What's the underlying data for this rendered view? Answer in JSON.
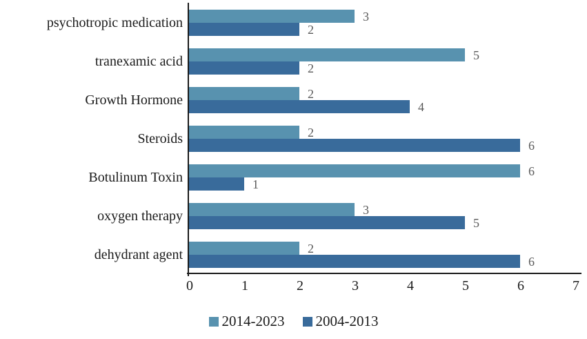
{
  "chart_data": {
    "type": "bar",
    "orientation": "horizontal",
    "title": "",
    "xlabel": "",
    "ylabel": "",
    "categories": [
      "psychotropic medication",
      "tranexamic acid",
      "Growth Hormone",
      "Steroids",
      "Botulinum Toxin",
      "oxygen therapy",
      "dehydrant agent"
    ],
    "series": [
      {
        "name": "2014-2023",
        "color": "#5892AF",
        "values": [
          3,
          5,
          2,
          2,
          6,
          3,
          2
        ]
      },
      {
        "name": "2004-2013",
        "color": "#396B9B",
        "values": [
          2,
          2,
          4,
          6,
          1,
          5,
          6
        ]
      }
    ],
    "x_ticks": [
      "0",
      "1",
      "2",
      "3",
      "4",
      "5",
      "6",
      "7"
    ],
    "xlim": [
      0,
      7
    ],
    "grid": false,
    "data_labels": true,
    "legend_position": "bottom"
  },
  "legend": {
    "items": [
      {
        "label": "2014-2023",
        "color": "#5892AF"
      },
      {
        "label": "2004-2013",
        "color": "#396B9B"
      }
    ]
  },
  "colors": {
    "series_2014_2023": "#5892AF",
    "series_2004_2013": "#396B9B",
    "axis": "#1a1a1a",
    "category_text": "#1a1a1a",
    "tick_text": "#1a1a1a",
    "data_label_text": "#595959",
    "background": "#ffffff"
  }
}
